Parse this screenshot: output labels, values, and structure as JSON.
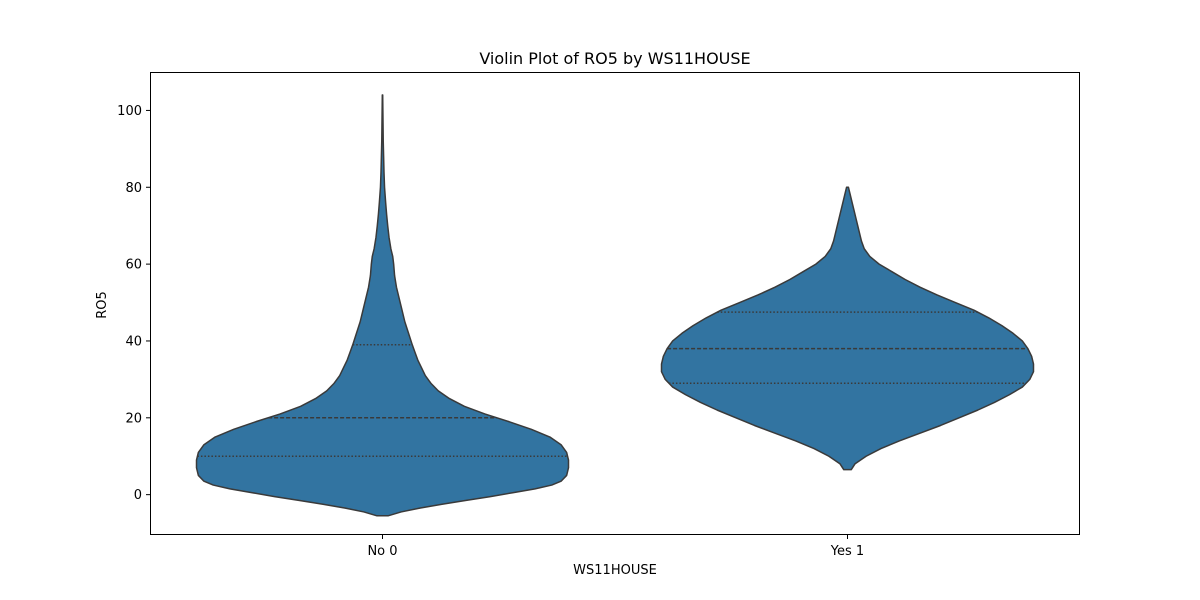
{
  "chart_data": {
    "type": "violin",
    "title": "Violin Plot of RO5 by WS11HOUSE",
    "xlabel": "WS11HOUSE",
    "ylabel": "RO5",
    "categories": [
      "No 0",
      "Yes 1"
    ],
    "ylim": [
      -10.5,
      110
    ],
    "yticks": [
      0,
      20,
      40,
      60,
      80,
      100
    ],
    "grid": false,
    "fill_color": "#3274a1",
    "edge_color": "#3a3a3a",
    "violins": [
      {
        "category": "No 0",
        "range": [
          -5.5,
          104
        ],
        "quartiles": [
          10,
          20,
          39
        ],
        "profile": [
          [
            -5.5,
            0.03
          ],
          [
            -4.5,
            0.1
          ],
          [
            -3.5,
            0.2
          ],
          [
            -2.5,
            0.32
          ],
          [
            -1.5,
            0.45
          ],
          [
            -0.5,
            0.58
          ],
          [
            0.5,
            0.7
          ],
          [
            1.5,
            0.82
          ],
          [
            2.5,
            0.91
          ],
          [
            3.5,
            0.96
          ],
          [
            5,
            0.99
          ],
          [
            7,
            1.0
          ],
          [
            9,
            1.0
          ],
          [
            11,
            0.99
          ],
          [
            13,
            0.96
          ],
          [
            15,
            0.9
          ],
          [
            17,
            0.8
          ],
          [
            19,
            0.68
          ],
          [
            21,
            0.55
          ],
          [
            23,
            0.44
          ],
          [
            25,
            0.36
          ],
          [
            27,
            0.3
          ],
          [
            29,
            0.26
          ],
          [
            31,
            0.23
          ],
          [
            33,
            0.21
          ],
          [
            35,
            0.19
          ],
          [
            37,
            0.175
          ],
          [
            39,
            0.16
          ],
          [
            42,
            0.14
          ],
          [
            45,
            0.12
          ],
          [
            48,
            0.105
          ],
          [
            51,
            0.09
          ],
          [
            54,
            0.075
          ],
          [
            57,
            0.065
          ],
          [
            60,
            0.06
          ],
          [
            62,
            0.055
          ],
          [
            64,
            0.045
          ],
          [
            67,
            0.035
          ],
          [
            70,
            0.028
          ],
          [
            73,
            0.022
          ],
          [
            76,
            0.017
          ],
          [
            80,
            0.011
          ],
          [
            84,
            0.008
          ],
          [
            88,
            0.006
          ],
          [
            92,
            0.004
          ],
          [
            96,
            0.003
          ],
          [
            100,
            0.002
          ],
          [
            104,
            0.001
          ]
        ]
      },
      {
        "category": "Yes 1",
        "range": [
          6.5,
          80
        ],
        "quartiles": [
          29,
          38,
          47.5
        ],
        "profile": [
          [
            6.5,
            0.02
          ],
          [
            8,
            0.04
          ],
          [
            10,
            0.1
          ],
          [
            12,
            0.18
          ],
          [
            14,
            0.28
          ],
          [
            16,
            0.39
          ],
          [
            18,
            0.5
          ],
          [
            20,
            0.6
          ],
          [
            22,
            0.7
          ],
          [
            24,
            0.79
          ],
          [
            26,
            0.87
          ],
          [
            28,
            0.94
          ],
          [
            30,
            0.98
          ],
          [
            32,
            1.0
          ],
          [
            34,
            1.0
          ],
          [
            36,
            0.99
          ],
          [
            38,
            0.97
          ],
          [
            40,
            0.94
          ],
          [
            42,
            0.89
          ],
          [
            44,
            0.83
          ],
          [
            46,
            0.76
          ],
          [
            48,
            0.68
          ],
          [
            50,
            0.58
          ],
          [
            52,
            0.48
          ],
          [
            54,
            0.39
          ],
          [
            56,
            0.31
          ],
          [
            58,
            0.24
          ],
          [
            60,
            0.17
          ],
          [
            62,
            0.12
          ],
          [
            64,
            0.09
          ],
          [
            66,
            0.075
          ],
          [
            68,
            0.065
          ],
          [
            70,
            0.055
          ],
          [
            72,
            0.045
          ],
          [
            74,
            0.035
          ],
          [
            76,
            0.025
          ],
          [
            78,
            0.015
          ],
          [
            80,
            0.005
          ]
        ]
      }
    ]
  }
}
